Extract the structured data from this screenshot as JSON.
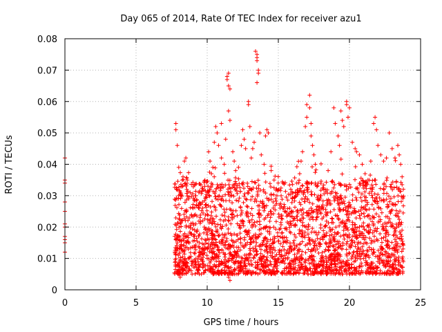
{
  "chart_data": {
    "type": "scatter",
    "title": "Day 065 of 2014, Rate Of TEC Index for receiver azu1",
    "xlabel": "GPS time / hours",
    "ylabel": "ROTI / TECUs",
    "xlim": [
      0,
      25
    ],
    "ylim": [
      0,
      0.08
    ],
    "xticks": [
      0,
      5,
      10,
      15,
      20,
      25
    ],
    "xtick_labels": [
      "0",
      "5",
      "10",
      "15",
      "20",
      "25"
    ],
    "yticks": [
      0,
      0.01,
      0.02,
      0.03,
      0.04,
      0.05,
      0.06,
      0.07,
      0.08
    ],
    "ytick_labels": [
      "0",
      "0.01",
      "0.02",
      "0.03",
      "0.04",
      "0.05",
      "0.06",
      "0.07",
      "0.08"
    ],
    "grid": true,
    "marker": "+",
    "color": "#ff0000",
    "series": [
      {
        "name": "ROTI",
        "points": [
          [
            0.0,
            0.042
          ],
          [
            0.0,
            0.035
          ],
          [
            0.0,
            0.034
          ],
          [
            0.0,
            0.028
          ],
          [
            0.0,
            0.025
          ],
          [
            0.0,
            0.021
          ],
          [
            0.0,
            0.02
          ],
          [
            0.0,
            0.017
          ],
          [
            0.0,
            0.016
          ],
          [
            0.0,
            0.015
          ],
          [
            0.0,
            0.012
          ],
          [
            7.8,
            0.053
          ],
          [
            7.8,
            0.051
          ],
          [
            7.9,
            0.046
          ],
          [
            8.0,
            0.039
          ],
          [
            8.0,
            0.03
          ],
          [
            8.2,
            0.022
          ],
          [
            8.3,
            0.036
          ],
          [
            8.4,
            0.041
          ],
          [
            8.5,
            0.042
          ],
          [
            8.6,
            0.035
          ],
          [
            8.7,
            0.029
          ],
          [
            8.8,
            0.031
          ],
          [
            9.0,
            0.026
          ],
          [
            9.2,
            0.021
          ],
          [
            9.3,
            0.019
          ],
          [
            9.5,
            0.023
          ],
          [
            9.8,
            0.02
          ],
          [
            10.0,
            0.024
          ],
          [
            10.1,
            0.044
          ],
          [
            10.2,
            0.041
          ],
          [
            10.3,
            0.037
          ],
          [
            10.4,
            0.039
          ],
          [
            10.5,
            0.047
          ],
          [
            10.6,
            0.052
          ],
          [
            10.7,
            0.05
          ],
          [
            10.8,
            0.046
          ],
          [
            11.0,
            0.053
          ],
          [
            11.0,
            0.042
          ],
          [
            11.2,
            0.04
          ],
          [
            11.3,
            0.048
          ],
          [
            11.4,
            0.068
          ],
          [
            11.4,
            0.067
          ],
          [
            11.5,
            0.069
          ],
          [
            11.5,
            0.065
          ],
          [
            11.6,
            0.064
          ],
          [
            11.5,
            0.057
          ],
          [
            11.6,
            0.054
          ],
          [
            11.8,
            0.044
          ],
          [
            11.9,
            0.041
          ],
          [
            12.0,
            0.038
          ],
          [
            12.2,
            0.039
          ],
          [
            12.4,
            0.046
          ],
          [
            12.5,
            0.051
          ],
          [
            12.6,
            0.048
          ],
          [
            12.7,
            0.045
          ],
          [
            12.9,
            0.06
          ],
          [
            12.9,
            0.059
          ],
          [
            13.0,
            0.052
          ],
          [
            13.1,
            0.042
          ],
          [
            13.2,
            0.045
          ],
          [
            13.3,
            0.047
          ],
          [
            13.4,
            0.076
          ],
          [
            13.5,
            0.075
          ],
          [
            13.5,
            0.074
          ],
          [
            13.5,
            0.073
          ],
          [
            13.6,
            0.07
          ],
          [
            13.6,
            0.069
          ],
          [
            13.5,
            0.066
          ],
          [
            13.7,
            0.05
          ],
          [
            13.8,
            0.043
          ],
          [
            14.0,
            0.04
          ],
          [
            14.1,
            0.049
          ],
          [
            14.2,
            0.051
          ],
          [
            14.3,
            0.05
          ],
          [
            14.5,
            0.038
          ],
          [
            14.7,
            0.035
          ],
          [
            14.9,
            0.03
          ],
          [
            15.1,
            0.027
          ],
          [
            15.3,
            0.026
          ],
          [
            15.5,
            0.025
          ],
          [
            15.8,
            0.026
          ],
          [
            16.0,
            0.029
          ],
          [
            16.2,
            0.031
          ],
          [
            16.3,
            0.034
          ],
          [
            16.5,
            0.037
          ],
          [
            16.6,
            0.041
          ],
          [
            16.7,
            0.044
          ],
          [
            16.9,
            0.052
          ],
          [
            17.0,
            0.059
          ],
          [
            17.0,
            0.055
          ],
          [
            17.2,
            0.062
          ],
          [
            17.2,
            0.058
          ],
          [
            17.3,
            0.053
          ],
          [
            17.3,
            0.049
          ],
          [
            17.4,
            0.046
          ],
          [
            17.5,
            0.043
          ],
          [
            17.6,
            0.04
          ],
          [
            17.8,
            0.034
          ],
          [
            18.0,
            0.03
          ],
          [
            18.2,
            0.032
          ],
          [
            18.5,
            0.038
          ],
          [
            18.7,
            0.044
          ],
          [
            18.9,
            0.058
          ],
          [
            19.0,
            0.053
          ],
          [
            19.2,
            0.049
          ],
          [
            19.3,
            0.046
          ],
          [
            19.4,
            0.057
          ],
          [
            19.5,
            0.054
          ],
          [
            19.6,
            0.052
          ],
          [
            19.8,
            0.06
          ],
          [
            19.8,
            0.059
          ],
          [
            19.9,
            0.055
          ],
          [
            20.0,
            0.058
          ],
          [
            20.2,
            0.047
          ],
          [
            20.4,
            0.045
          ],
          [
            20.5,
            0.044
          ],
          [
            20.7,
            0.043
          ],
          [
            20.9,
            0.04
          ],
          [
            21.1,
            0.037
          ],
          [
            21.3,
            0.035
          ],
          [
            21.5,
            0.041
          ],
          [
            21.7,
            0.053
          ],
          [
            21.8,
            0.055
          ],
          [
            21.9,
            0.051
          ],
          [
            22.0,
            0.046
          ],
          [
            22.2,
            0.043
          ],
          [
            22.4,
            0.041
          ],
          [
            22.6,
            0.042
          ],
          [
            22.8,
            0.05
          ],
          [
            23.0,
            0.045
          ],
          [
            23.2,
            0.042
          ],
          [
            23.4,
            0.046
          ],
          [
            23.5,
            0.043
          ],
          [
            23.6,
            0.04
          ],
          [
            23.7,
            0.036
          ],
          [
            7.8,
            0.01
          ],
          [
            7.9,
            0.013
          ],
          [
            8.0,
            0.008
          ],
          [
            8.0,
            0.005
          ],
          [
            8.1,
            0.004
          ],
          [
            8.2,
            0.007
          ],
          [
            8.5,
            0.006
          ],
          [
            9.0,
            0.009
          ],
          [
            9.5,
            0.008
          ],
          [
            10.0,
            0.01
          ],
          [
            10.5,
            0.008
          ],
          [
            11.0,
            0.006
          ],
          [
            11.5,
            0.004
          ],
          [
            11.6,
            0.003
          ],
          [
            11.7,
            0.006
          ],
          [
            12.0,
            0.009
          ],
          [
            12.5,
            0.01
          ],
          [
            13.0,
            0.008
          ],
          [
            13.5,
            0.007
          ],
          [
            14.0,
            0.009
          ],
          [
            14.5,
            0.008
          ],
          [
            15.0,
            0.01
          ],
          [
            16.0,
            0.009
          ],
          [
            16.5,
            0.007
          ],
          [
            17.0,
            0.006
          ],
          [
            17.1,
            0.005
          ],
          [
            17.5,
            0.008
          ],
          [
            18.0,
            0.009
          ],
          [
            18.5,
            0.007
          ],
          [
            19.0,
            0.008
          ],
          [
            19.5,
            0.009
          ],
          [
            20.0,
            0.008
          ],
          [
            20.5,
            0.007
          ],
          [
            21.0,
            0.01
          ],
          [
            21.5,
            0.008
          ],
          [
            22.0,
            0.009
          ],
          [
            22.5,
            0.008
          ],
          [
            23.0,
            0.007
          ],
          [
            23.5,
            0.006
          ],
          [
            23.7,
            0.01
          ]
        ]
      }
    ],
    "dense_band": {
      "description": "dense cluster of ROTI values",
      "x_range": [
        7.7,
        23.8
      ],
      "y_range": [
        0.005,
        0.035
      ]
    }
  }
}
